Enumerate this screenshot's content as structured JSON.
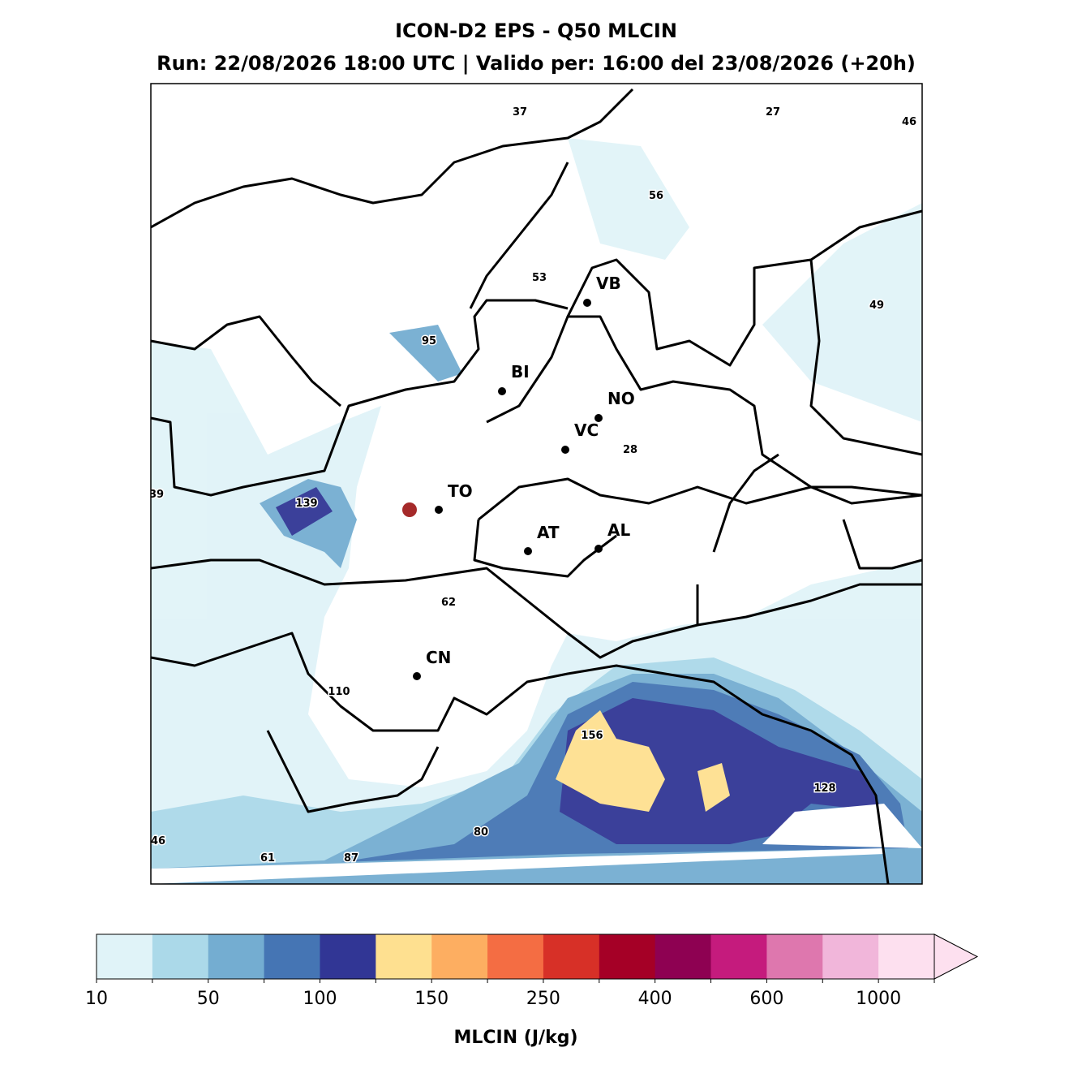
{
  "title": "ICON-D2 EPS - Q50 MLCIN",
  "subtitle": "Run: 22/08/2026 18:00 UTC | Valido per: 16:00 del 23/08/2026 (+20h)",
  "cities": [
    "VB",
    "BI",
    "NO",
    "VC",
    "TO",
    "AT",
    "AL",
    "CN"
  ],
  "max_labels": [
    37,
    27,
    46,
    56,
    53,
    49,
    95,
    28,
    39,
    139,
    62,
    110,
    156,
    128,
    46,
    80,
    61,
    87
  ],
  "colorbar": {
    "colors": [
      "#e0f3f8",
      "#abd9e9",
      "#74add1",
      "#4575b4",
      "#313695",
      "#fee090",
      "#fdae61",
      "#f46d43",
      "#d73027",
      "#a50026",
      "#8e0152",
      "#c51b7d",
      "#de77ae",
      "#f1b6da",
      "#fde0ef"
    ],
    "ticks": [
      10,
      50,
      100,
      150,
      250,
      400,
      600,
      1000
    ],
    "label": "MLCIN (J/kg)"
  }
}
